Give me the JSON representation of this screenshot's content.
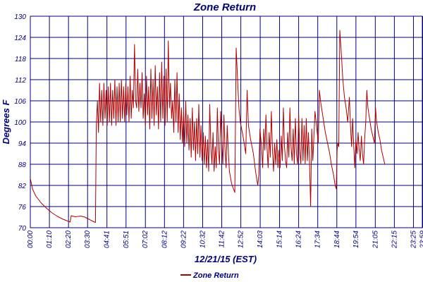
{
  "colors": {
    "series": "#b00000",
    "axis": "#00007b",
    "grid": "#00007b",
    "background": "#ffffff"
  },
  "chart_data": {
    "type": "line",
    "title": "Zone Return",
    "xlabel": "12/21/15 (EST)",
    "ylabel": "Degrees F",
    "ylim": [
      70,
      130
    ],
    "xlim": [
      0,
      1440
    ],
    "y_ticks": [
      70,
      76,
      82,
      88,
      94,
      100,
      106,
      112,
      118,
      124,
      130
    ],
    "x_ticks": [
      {
        "label": "00:00",
        "x": 0
      },
      {
        "label": "01:10",
        "x": 70
      },
      {
        "label": "02:20",
        "x": 140
      },
      {
        "label": "03:30",
        "x": 210
      },
      {
        "label": "04:41",
        "x": 281
      },
      {
        "label": "05:51",
        "x": 351
      },
      {
        "label": "07:02",
        "x": 422
      },
      {
        "label": "08:12",
        "x": 492
      },
      {
        "label": "09:22",
        "x": 562
      },
      {
        "label": "10:32",
        "x": 632
      },
      {
        "label": "11:42",
        "x": 702
      },
      {
        "label": "12:52",
        "x": 772
      },
      {
        "label": "14:03",
        "x": 843
      },
      {
        "label": "15:14",
        "x": 914
      },
      {
        "label": "16:24",
        "x": 984
      },
      {
        "label": "17:34",
        "x": 1054
      },
      {
        "label": "18:44",
        "x": 1124
      },
      {
        "label": "19:54",
        "x": 1194
      },
      {
        "label": "21:05",
        "x": 1265
      },
      {
        "label": "22:15",
        "x": 1335
      },
      {
        "label": "23:25",
        "x": 1405
      },
      {
        "label": "23:59",
        "x": 1439
      }
    ],
    "grid": true,
    "legend_position": "bottom-left",
    "series": [
      {
        "name": "Zone Return",
        "points": [
          [
            0,
            84
          ],
          [
            8,
            81
          ],
          [
            20,
            79
          ],
          [
            40,
            77
          ],
          [
            60,
            75.5
          ],
          [
            80,
            74.2
          ],
          [
            100,
            73.2
          ],
          [
            120,
            72.4
          ],
          [
            140,
            71.8
          ],
          [
            146,
            71.6
          ],
          [
            150,
            73.4
          ],
          [
            165,
            73.1
          ],
          [
            185,
            73.3
          ],
          [
            200,
            73.0
          ],
          [
            215,
            72.4
          ],
          [
            235,
            71.6
          ],
          [
            239,
            71.5
          ],
          [
            242,
            99
          ],
          [
            246,
            106
          ],
          [
            250,
            97
          ],
          [
            254,
            111
          ],
          [
            258,
            100
          ],
          [
            262,
            109
          ],
          [
            266,
            99
          ],
          [
            270,
            111
          ],
          [
            274,
            101
          ],
          [
            278,
            109
          ],
          [
            282,
            99
          ],
          [
            286,
            110
          ],
          [
            290,
            100
          ],
          [
            294,
            111
          ],
          [
            298,
            99
          ],
          [
            302,
            109
          ],
          [
            306,
            101
          ],
          [
            310,
            112
          ],
          [
            314,
            99
          ],
          [
            318,
            110
          ],
          [
            322,
            100
          ],
          [
            326,
            111
          ],
          [
            330,
            100
          ],
          [
            334,
            112
          ],
          [
            338,
            101
          ],
          [
            342,
            110
          ],
          [
            346,
            100
          ],
          [
            350,
            111
          ],
          [
            354,
            102
          ],
          [
            358,
            110
          ],
          [
            362,
            100
          ],
          [
            366,
            113
          ],
          [
            370,
            101
          ],
          [
            374,
            109
          ],
          [
            378,
            104
          ],
          [
            382,
            122
          ],
          [
            386,
            106
          ],
          [
            390,
            104
          ],
          [
            394,
            115
          ],
          [
            398,
            103
          ],
          [
            402,
            111
          ],
          [
            406,
            104
          ],
          [
            410,
            114
          ],
          [
            414,
            101
          ],
          [
            418,
            108
          ],
          [
            422,
            99
          ],
          [
            426,
            113
          ],
          [
            430,
            102
          ],
          [
            434,
            110
          ],
          [
            438,
            98
          ],
          [
            442,
            115
          ],
          [
            446,
            101
          ],
          [
            450,
            112
          ],
          [
            454,
            99
          ],
          [
            458,
            116
          ],
          [
            462,
            102
          ],
          [
            466,
            110
          ],
          [
            470,
            98
          ],
          [
            474,
            114
          ],
          [
            478,
            100
          ],
          [
            482,
            117
          ],
          [
            486,
            101
          ],
          [
            490,
            113
          ],
          [
            494,
            99
          ],
          [
            498,
            115
          ],
          [
            502,
            100
          ],
          [
            506,
            123
          ],
          [
            510,
            104
          ],
          [
            514,
            111
          ],
          [
            518,
            101
          ],
          [
            522,
            106
          ],
          [
            526,
            97
          ],
          [
            530,
            112
          ],
          [
            534,
            100
          ],
          [
            538,
            114
          ],
          [
            542,
            97
          ],
          [
            546,
            108
          ],
          [
            550,
            95
          ],
          [
            554,
            104
          ],
          [
            558,
            94
          ],
          [
            562,
            103
          ],
          [
            566,
            93
          ],
          [
            570,
            106
          ],
          [
            574,
            94
          ],
          [
            578,
            102
          ],
          [
            582,
            92
          ],
          [
            586,
            101
          ],
          [
            590,
            90
          ],
          [
            594,
            104
          ],
          [
            598,
            92
          ],
          [
            602,
            100
          ],
          [
            606,
            89
          ],
          [
            610,
            101
          ],
          [
            614,
            91
          ],
          [
            618,
            105
          ],
          [
            622,
            90
          ],
          [
            626,
            99
          ],
          [
            630,
            89
          ],
          [
            634,
            97
          ],
          [
            638,
            88
          ],
          [
            642,
            96
          ],
          [
            646,
            87
          ],
          [
            650,
            95
          ],
          [
            654,
            86
          ],
          [
            658,
            105
          ],
          [
            662,
            93
          ],
          [
            666,
            88
          ],
          [
            670,
            97
          ],
          [
            674,
            86
          ],
          [
            678,
            93
          ],
          [
            682,
            87
          ],
          [
            686,
            104
          ],
          [
            690,
            92
          ],
          [
            694,
            88
          ],
          [
            698,
            103
          ],
          [
            702,
            95
          ],
          [
            706,
            88
          ],
          [
            710,
            102
          ],
          [
            714,
            92
          ],
          [
            718,
            87
          ],
          [
            722,
            99
          ],
          [
            726,
            92
          ],
          [
            730,
            86
          ],
          [
            738,
            82.5
          ],
          [
            745,
            81
          ],
          [
            750,
            80
          ],
          [
            755,
            121
          ],
          [
            760,
            112
          ],
          [
            765,
            104
          ],
          [
            770,
            100
          ],
          [
            780,
            96
          ],
          [
            790,
            91
          ],
          [
            795,
            109
          ],
          [
            800,
            99
          ],
          [
            808,
            95
          ],
          [
            818,
            91
          ],
          [
            826,
            86
          ],
          [
            834,
            82
          ],
          [
            838,
            85
          ],
          [
            842,
            98
          ],
          [
            848,
            93
          ],
          [
            852,
            87
          ],
          [
            856,
            98
          ],
          [
            860,
            92
          ],
          [
            864,
            102
          ],
          [
            868,
            93
          ],
          [
            872,
            87
          ],
          [
            876,
            97
          ],
          [
            880,
            90
          ],
          [
            884,
            103
          ],
          [
            888,
            92
          ],
          [
            892,
            86
          ],
          [
            896,
            94
          ],
          [
            900,
            88
          ],
          [
            904,
            95
          ],
          [
            908,
            87
          ],
          [
            912,
            92
          ],
          [
            916,
            87
          ],
          [
            920,
            96
          ],
          [
            924,
            89
          ],
          [
            928,
            104
          ],
          [
            932,
            93
          ],
          [
            936,
            89
          ],
          [
            940,
            87
          ],
          [
            944,
            97
          ],
          [
            948,
            90
          ],
          [
            952,
            104
          ],
          [
            956,
            93
          ],
          [
            960,
            89
          ],
          [
            964,
            98
          ],
          [
            968,
            88
          ],
          [
            972,
            101
          ],
          [
            976,
            91
          ],
          [
            980,
            88
          ],
          [
            984,
            102
          ],
          [
            988,
            92
          ],
          [
            992,
            88
          ],
          [
            996,
            101
          ],
          [
            1000,
            89
          ],
          [
            1004,
            99
          ],
          [
            1008,
            88
          ],
          [
            1012,
            101
          ],
          [
            1016,
            89
          ],
          [
            1020,
            97
          ],
          [
            1024,
            88
          ],
          [
            1028,
            76
          ],
          [
            1032,
            98
          ],
          [
            1036,
            89
          ],
          [
            1040,
            96
          ],
          [
            1044,
            103
          ],
          [
            1048,
            100
          ],
          [
            1052,
            97
          ],
          [
            1056,
            94
          ],
          [
            1060,
            109
          ],
          [
            1066,
            105
          ],
          [
            1074,
            101
          ],
          [
            1082,
            97
          ],
          [
            1090,
            94
          ],
          [
            1098,
            91
          ],
          [
            1104,
            88
          ],
          [
            1112,
            85
          ],
          [
            1118,
            82
          ],
          [
            1122,
            81
          ],
          [
            1125,
            92
          ],
          [
            1128,
            94
          ],
          [
            1131,
            93
          ],
          [
            1135,
            126
          ],
          [
            1140,
            120
          ],
          [
            1146,
            112
          ],
          [
            1152,
            107
          ],
          [
            1158,
            104
          ],
          [
            1164,
            100
          ],
          [
            1170,
            107
          ],
          [
            1174,
            99
          ],
          [
            1178,
            93
          ],
          [
            1182,
            101
          ],
          [
            1186,
            93
          ],
          [
            1190,
            87
          ],
          [
            1194,
            95
          ],
          [
            1198,
            91
          ],
          [
            1202,
            97
          ],
          [
            1206,
            92
          ],
          [
            1210,
            89
          ],
          [
            1214,
            96
          ],
          [
            1218,
            91
          ],
          [
            1222,
            88
          ],
          [
            1226,
            95
          ],
          [
            1230,
            100
          ],
          [
            1234,
            109
          ],
          [
            1238,
            104
          ],
          [
            1244,
            101
          ],
          [
            1250,
            98
          ],
          [
            1256,
            96
          ],
          [
            1262,
            94
          ],
          [
            1266,
            104
          ],
          [
            1270,
            100
          ],
          [
            1276,
            97
          ],
          [
            1282,
            95
          ],
          [
            1288,
            92
          ],
          [
            1294,
            90
          ],
          [
            1300,
            88
          ]
        ]
      }
    ]
  }
}
